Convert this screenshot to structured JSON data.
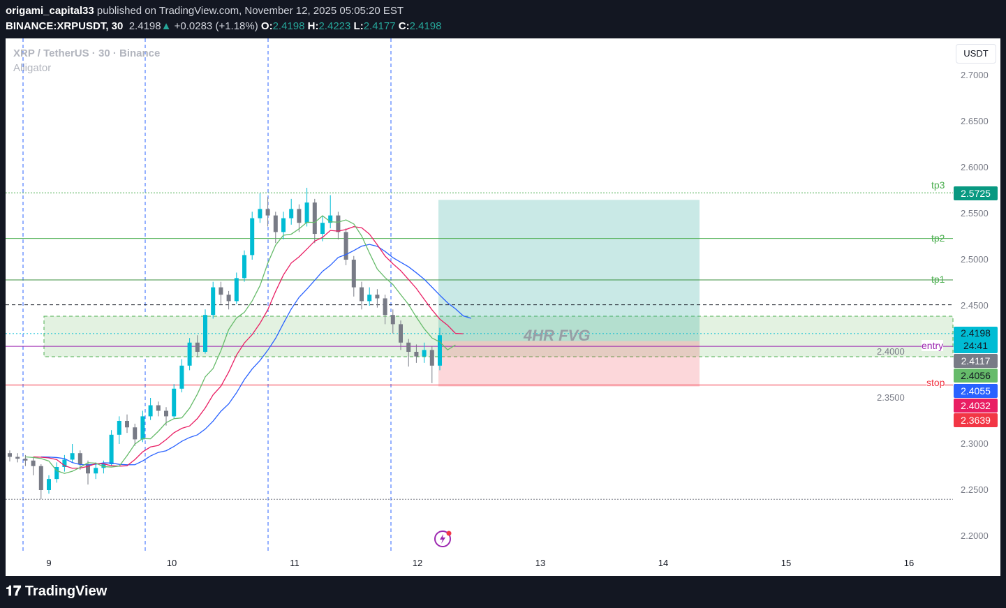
{
  "header": {
    "author": "origami_capital33",
    "published": "published on TradingView.com, November 12, 2025 05:05:20 EST",
    "symbol": "BINANCE:XRPUSDT, 30",
    "last": "2.4198",
    "change": "+0.0283 (+1.18%)",
    "o_label": "O:",
    "o": "2.4198",
    "h_label": "H:",
    "h": "2.4223",
    "l_label": "L:",
    "l": "2.4177",
    "c_label": "C:",
    "c": "2.4198"
  },
  "legend": {
    "title": "XRP / TetherUS · 30 · Binance",
    "indicator": "Alligator"
  },
  "currency_button": "USDT",
  "colors": {
    "up": "#00bcd4",
    "down": "#787b86",
    "jaw": "#2962ff",
    "teeth": "#e91e63",
    "lips": "#66bb6a",
    "target": "#26a69a",
    "stop": "#f23645"
  },
  "annotations": {
    "fvg": "4HR FVG",
    "tp3": "tp3",
    "tp2": "tp2",
    "tp1": "tp1",
    "entry": "entry",
    "stop": "stop"
  },
  "price_labels": [
    {
      "text": "2.5725",
      "bg": "#089981",
      "fg": "#ffffff"
    },
    {
      "text": "2.4198",
      "sub": "24:41",
      "bg": "#00bcd4",
      "fg": "#131722"
    },
    {
      "text": "2.4117",
      "bg": "#787b86",
      "fg": "#ffffff"
    },
    {
      "text": "2.4056",
      "bg": "#66bb6a",
      "fg": "#131722"
    },
    {
      "text": "2.4055",
      "bg": "#2962ff",
      "fg": "#ffffff"
    },
    {
      "text": "2.4032",
      "bg": "#e91e63",
      "fg": "#ffffff"
    },
    {
      "text": "2.3639",
      "bg": "#f23645",
      "fg": "#ffffff"
    }
  ],
  "footer": {
    "logo": "TradingView"
  },
  "chart_data": {
    "type": "candlestick",
    "yticks": [
      "2.7000",
      "2.6500",
      "2.6000",
      "2.5500",
      "2.5000",
      "2.4500",
      "2.4000",
      "2.3500",
      "2.3000",
      "2.2500",
      "2.2000"
    ],
    "ylim": [
      2.16,
      2.74
    ],
    "xticks": [
      "9",
      "10",
      "11",
      "12",
      "13",
      "14",
      "15",
      "16"
    ],
    "levels": {
      "tp3": 2.5725,
      "tp2": 2.523,
      "tp1": 2.478,
      "dashed": 2.451,
      "entry": 2.406,
      "stop": 2.3639,
      "low_dotted": 2.24,
      "fvg": [
        2.3947,
        2.4386
      ]
    },
    "candles": [
      [
        2.29,
        2.293,
        2.281,
        2.286
      ],
      [
        2.286,
        2.29,
        2.28,
        2.284
      ],
      [
        2.284,
        2.288,
        2.276,
        2.282
      ],
      [
        2.282,
        2.285,
        2.266,
        2.276
      ],
      [
        2.276,
        2.278,
        2.24,
        2.25
      ],
      [
        2.25,
        2.266,
        2.246,
        2.262
      ],
      [
        2.262,
        2.28,
        2.258,
        2.275
      ],
      [
        2.275,
        2.288,
        2.27,
        2.283
      ],
      [
        2.283,
        2.3,
        2.28,
        2.29
      ],
      [
        2.29,
        2.293,
        2.272,
        2.278
      ],
      [
        2.278,
        2.282,
        2.256,
        2.268
      ],
      [
        2.268,
        2.28,
        2.262,
        2.274
      ],
      [
        2.274,
        2.282,
        2.268,
        2.278
      ],
      [
        2.278,
        2.315,
        2.276,
        2.31
      ],
      [
        2.31,
        2.33,
        2.3,
        2.325
      ],
      [
        2.325,
        2.332,
        2.312,
        2.318
      ],
      [
        2.318,
        2.322,
        2.298,
        2.305
      ],
      [
        2.305,
        2.336,
        2.302,
        2.33
      ],
      [
        2.33,
        2.35,
        2.326,
        2.342
      ],
      [
        2.342,
        2.346,
        2.33,
        2.336
      ],
      [
        2.336,
        2.34,
        2.32,
        2.33
      ],
      [
        2.33,
        2.365,
        2.328,
        2.36
      ],
      [
        2.36,
        2.392,
        2.356,
        2.385
      ],
      [
        2.385,
        2.415,
        2.38,
        2.41
      ],
      [
        2.41,
        2.418,
        2.394,
        2.4
      ],
      [
        2.4,
        2.446,
        2.398,
        2.44
      ],
      [
        2.44,
        2.476,
        2.436,
        2.47
      ],
      [
        2.47,
        2.476,
        2.452,
        2.462
      ],
      [
        2.462,
        2.466,
        2.446,
        2.455
      ],
      [
        2.455,
        2.486,
        2.452,
        2.48
      ],
      [
        2.48,
        2.51,
        2.476,
        2.505
      ],
      [
        2.505,
        2.552,
        2.5,
        2.545
      ],
      [
        2.545,
        2.572,
        2.54,
        2.555
      ],
      [
        2.555,
        2.568,
        2.536,
        2.548
      ],
      [
        2.548,
        2.552,
        2.518,
        2.53
      ],
      [
        2.53,
        2.552,
        2.522,
        2.545
      ],
      [
        2.545,
        2.566,
        2.538,
        2.555
      ],
      [
        2.555,
        2.56,
        2.53,
        2.54
      ],
      [
        2.54,
        2.578,
        2.536,
        2.562
      ],
      [
        2.562,
        2.566,
        2.518,
        2.528
      ],
      [
        2.528,
        2.548,
        2.52,
        2.54
      ],
      [
        2.54,
        2.57,
        2.534,
        2.548
      ],
      [
        2.548,
        2.552,
        2.522,
        2.53
      ],
      [
        2.53,
        2.534,
        2.494,
        2.5
      ],
      [
        2.5,
        2.504,
        2.46,
        2.47
      ],
      [
        2.47,
        2.476,
        2.446,
        2.455
      ],
      [
        2.455,
        2.47,
        2.45,
        2.462
      ],
      [
        2.462,
        2.468,
        2.448,
        2.458
      ],
      [
        2.458,
        2.462,
        2.43,
        2.44
      ],
      [
        2.44,
        2.446,
        2.42,
        2.43
      ],
      [
        2.43,
        2.434,
        2.402,
        2.41
      ],
      [
        2.41,
        2.414,
        2.384,
        2.4
      ],
      [
        2.4,
        2.408,
        2.388,
        2.395
      ],
      [
        2.395,
        2.41,
        2.388,
        2.402
      ],
      [
        2.402,
        2.406,
        2.366,
        2.385
      ],
      [
        2.385,
        2.426,
        2.38,
        2.418
      ]
    ]
  }
}
